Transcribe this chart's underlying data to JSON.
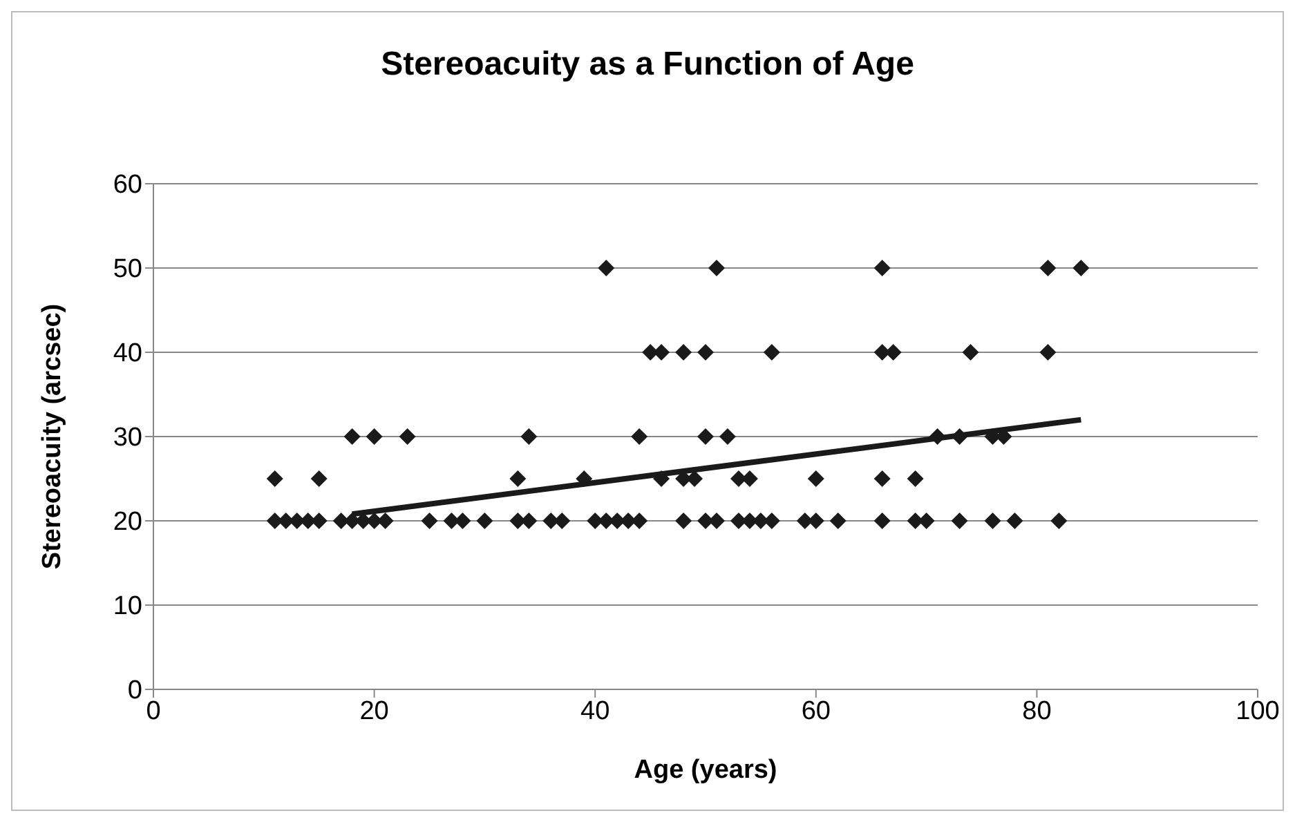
{
  "chart_data": {
    "type": "scatter",
    "title": "Stereoacuity as a Function of Age",
    "xlabel": "Age (years)",
    "ylabel": "Stereoacuity (arcsec)",
    "xlim": [
      0,
      100
    ],
    "xticks": [
      0,
      20,
      40,
      60,
      80,
      100
    ],
    "ylim": [
      0,
      60
    ],
    "yticks": [
      0,
      10,
      20,
      30,
      40,
      50,
      60
    ],
    "grid": "y",
    "marker": "diamond",
    "series": [
      {
        "color": "#1a1a1a",
        "x": [
          41,
          51,
          66,
          81,
          84,
          45,
          46,
          48,
          50,
          56,
          66,
          67,
          74,
          81,
          18,
          20,
          23,
          34,
          44,
          50,
          52,
          71,
          73,
          76,
          77,
          11,
          15,
          33,
          39,
          46,
          48,
          49,
          53,
          54,
          60,
          66,
          69,
          11,
          12,
          13,
          14,
          15,
          17,
          18,
          19,
          20,
          21,
          25,
          27,
          28,
          30,
          33,
          34,
          36,
          37,
          40,
          41,
          42,
          43,
          44,
          48,
          50,
          51,
          53,
          54,
          55,
          56,
          59,
          60,
          62,
          66,
          69,
          70,
          73,
          76,
          78,
          82
        ],
        "values": [
          50,
          50,
          50,
          50,
          50,
          40,
          40,
          40,
          40,
          40,
          40,
          40,
          40,
          40,
          30,
          30,
          30,
          30,
          30,
          30,
          30,
          30,
          30,
          30,
          30,
          25,
          25,
          25,
          25,
          25,
          25,
          25,
          25,
          25,
          25,
          25,
          25,
          20,
          20,
          20,
          20,
          20,
          20,
          20,
          20,
          20,
          20,
          20,
          20,
          20,
          20,
          20,
          20,
          20,
          20,
          20,
          20,
          20,
          20,
          20,
          20,
          20,
          20,
          20,
          20,
          20,
          20,
          20,
          20,
          20,
          20,
          20,
          20,
          20,
          20,
          20,
          20
        ]
      },
      {
        "type": "line",
        "color": "#1a1a1a",
        "marker": "none",
        "x": [
          18,
          84
        ],
        "values": [
          20.8,
          32
        ]
      }
    ]
  }
}
